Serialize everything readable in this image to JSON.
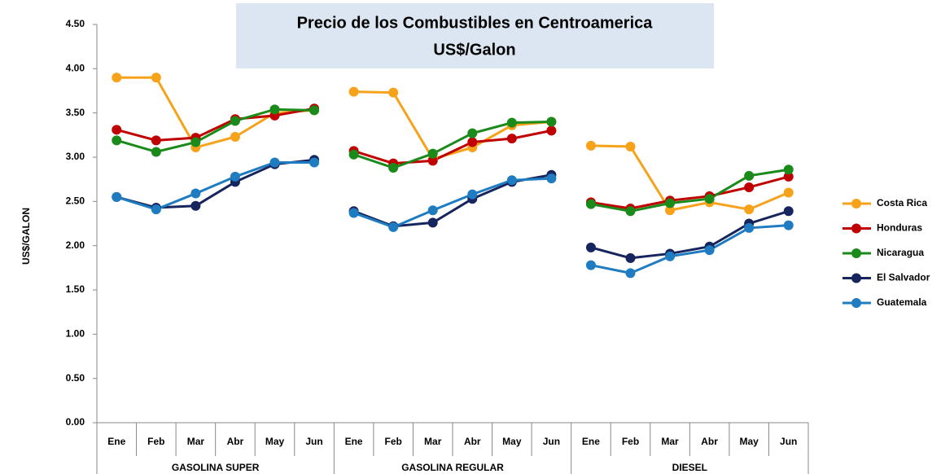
{
  "chart_data": {
    "type": "line",
    "title": [
      "Precio de los Combustibles en Centroamerica",
      "US$/Galon"
    ],
    "ylabel": "US$/GALON",
    "groups": [
      {
        "name": "GASOLINA SUPER",
        "categories": [
          "Ene",
          "Feb",
          "Mar",
          "Abr",
          "May",
          "Jun"
        ]
      },
      {
        "name": "GASOLINA REGULAR",
        "categories": [
          "Ene",
          "Feb",
          "Mar",
          "Abr",
          "May",
          "Jun"
        ]
      },
      {
        "name": "DIESEL",
        "categories": [
          "Ene",
          "Feb",
          "Mar",
          "Abr",
          "May",
          "Jun"
        ]
      }
    ],
    "series": [
      {
        "name": "Costa Rica",
        "color": "#f7a21b",
        "values": [
          [
            3.9,
            3.9,
            3.11,
            3.23,
            3.5,
            3.53
          ],
          [
            3.74,
            3.73,
            2.98,
            3.11,
            3.36,
            3.4
          ],
          [
            3.13,
            3.12,
            2.4,
            2.49,
            2.41,
            2.6
          ]
        ]
      },
      {
        "name": "Honduras",
        "color": "#c00000",
        "values": [
          [
            3.31,
            3.19,
            3.22,
            3.43,
            3.47,
            3.55
          ],
          [
            3.07,
            2.93,
            2.96,
            3.17,
            3.21,
            3.3
          ],
          [
            2.49,
            2.42,
            2.51,
            2.56,
            2.66,
            2.78
          ]
        ]
      },
      {
        "name": "Nicaragua",
        "color": "#1a8a1a",
        "values": [
          [
            3.19,
            3.06,
            3.17,
            3.41,
            3.54,
            3.53
          ],
          [
            3.03,
            2.88,
            3.04,
            3.27,
            3.39,
            3.4
          ],
          [
            2.47,
            2.39,
            2.48,
            2.53,
            2.79,
            2.86
          ]
        ]
      },
      {
        "name": "El Salvador",
        "color": "#17255e",
        "values": [
          [
            2.55,
            2.43,
            2.45,
            2.72,
            2.92,
            2.97
          ],
          [
            2.39,
            2.22,
            2.26,
            2.53,
            2.72,
            2.8
          ],
          [
            1.98,
            1.86,
            1.91,
            1.99,
            2.25,
            2.39
          ]
        ]
      },
      {
        "name": "Guatemala",
        "color": "#1f7cc1",
        "values": [
          [
            2.55,
            2.41,
            2.59,
            2.78,
            2.94,
            2.94
          ],
          [
            2.37,
            2.21,
            2.4,
            2.58,
            2.74,
            2.76
          ],
          [
            1.78,
            1.69,
            1.88,
            1.95,
            2.2,
            2.23
          ]
        ]
      }
    ],
    "ylim": [
      0,
      4.5
    ],
    "yticks": [
      {
        "value": 0,
        "label": "0.00"
      },
      {
        "value": 0.5,
        "label": "0.50"
      },
      {
        "value": 1,
        "label": "1.00"
      },
      {
        "value": 1.5,
        "label": "1.50"
      },
      {
        "value": 2,
        "label": "2.00"
      },
      {
        "value": 2.5,
        "label": "2.50"
      },
      {
        "value": 3,
        "label": "3.00"
      },
      {
        "value": 3.5,
        "label": "3.50"
      },
      {
        "value": 4,
        "label": "4.00"
      },
      {
        "value": 4.5,
        "label": "4.50"
      }
    ],
    "legend": "right"
  }
}
